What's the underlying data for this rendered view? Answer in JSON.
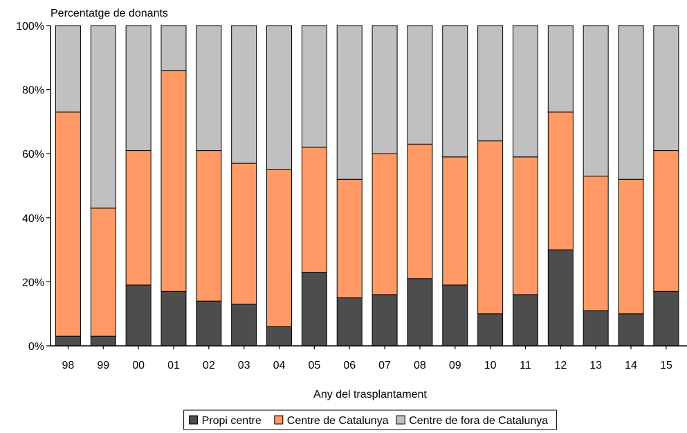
{
  "chart_data": {
    "type": "bar",
    "stacked": true,
    "ylabel": "Percentatge de donants",
    "xlabel": "Any del trasplantament",
    "ylim": [
      0,
      100
    ],
    "yticks": [
      "0%",
      "20%",
      "40%",
      "60%",
      "80%",
      "100%"
    ],
    "categories": [
      "98",
      "99",
      "00",
      "01",
      "02",
      "03",
      "04",
      "05",
      "06",
      "07",
      "08",
      "09",
      "10",
      "11",
      "12",
      "13",
      "14",
      "15"
    ],
    "series": [
      {
        "name": "Propi centre",
        "color": "#4d4d4d",
        "values": [
          3,
          3,
          19,
          17,
          14,
          13,
          6,
          23,
          15,
          16,
          21,
          19,
          10,
          16,
          30,
          11,
          10,
          17
        ]
      },
      {
        "name": "Centre de Catalunya",
        "color": "#ff9966",
        "values": [
          70,
          40,
          42,
          69,
          47,
          44,
          49,
          39,
          37,
          44,
          42,
          40,
          54,
          43,
          43,
          42,
          42,
          44
        ]
      },
      {
        "name": "Centre de fora de Catalunya",
        "color": "#c0c0c0",
        "values": [
          27,
          57,
          39,
          14,
          39,
          43,
          45,
          38,
          48,
          40,
          37,
          41,
          36,
          41,
          27,
          47,
          48,
          39
        ]
      }
    ],
    "legend_position": "bottom-center",
    "grid": false
  }
}
